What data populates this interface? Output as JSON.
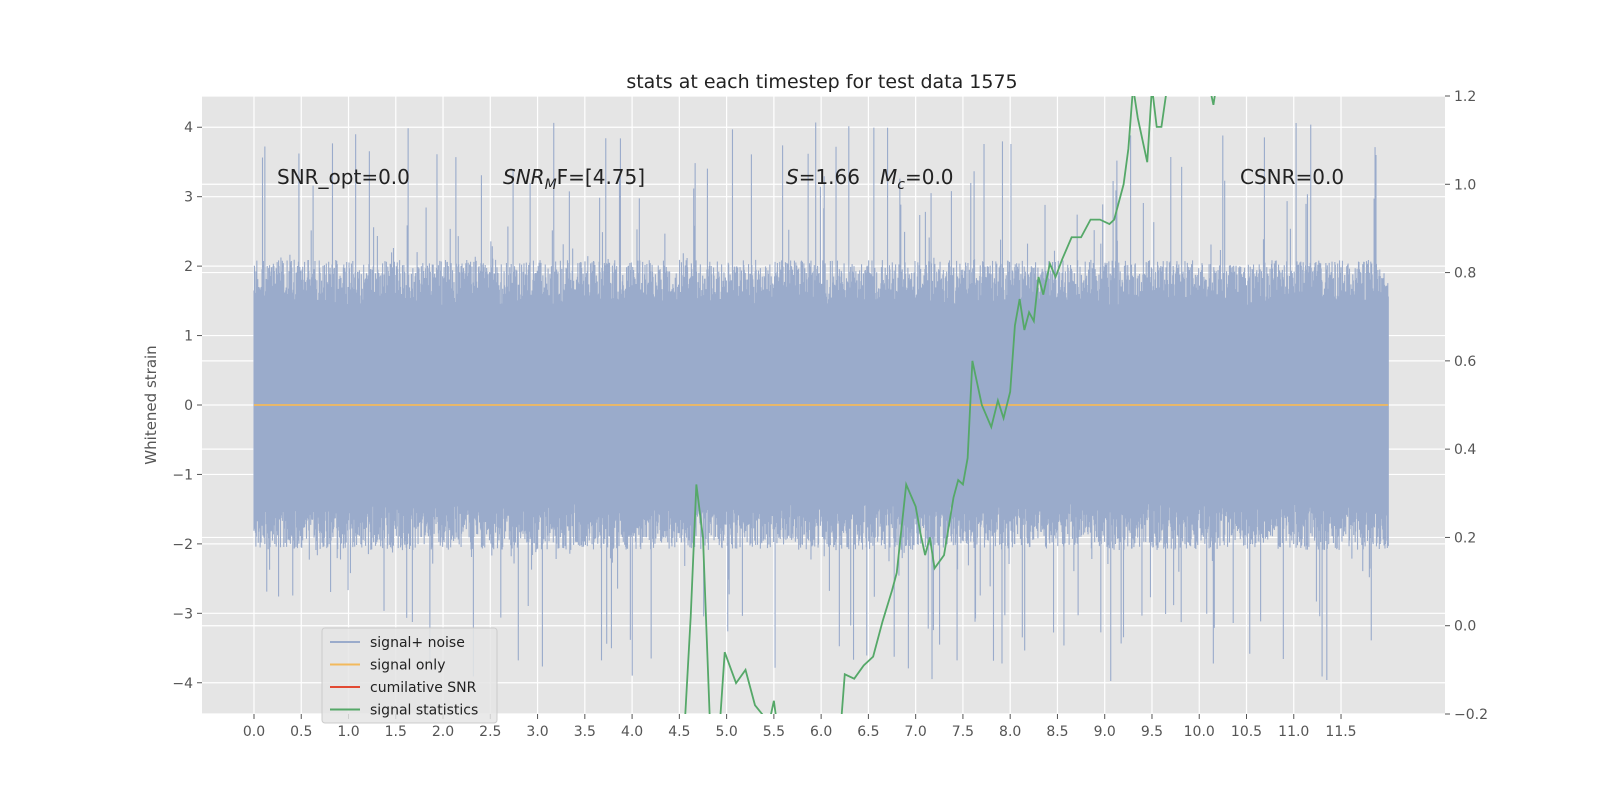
{
  "chart_data": {
    "type": "line",
    "title": "stats at each timestep for test data 1575",
    "ylabel": "Whitened strain",
    "xlim": [
      -0.55,
      12.6
    ],
    "ylim": [
      -4.45,
      4.45
    ],
    "y2lim": [
      -0.2,
      1.2
    ],
    "x_ticks": [
      0.0,
      0.5,
      1.0,
      1.5,
      2.0,
      2.5,
      3.0,
      3.5,
      4.0,
      4.5,
      5.0,
      5.5,
      6.0,
      6.5,
      7.0,
      7.5,
      8.0,
      8.5,
      9.0,
      9.5,
      10.0,
      10.5,
      11.0,
      11.5
    ],
    "x_tick_labels": [
      "0.0",
      "0.5",
      "1.0",
      "1.5",
      "2.0",
      "2.5",
      "3.0",
      "3.5",
      "4.0",
      "4.5",
      "5.0",
      "5.5",
      "6.0",
      "6.5",
      "7.0",
      "7.5",
      "8.0",
      "8.5",
      "9.0",
      "9.5",
      "10.0",
      "10.5",
      "11.0",
      "11.5"
    ],
    "y_ticks": [
      4,
      3,
      2,
      1,
      0,
      -1,
      -2,
      -3,
      -4
    ],
    "y_tick_labels": [
      "4",
      "3",
      "2",
      "1",
      "0",
      "−1",
      "−2",
      "−3",
      "−4"
    ],
    "y2_ticks": [
      1.2,
      1.0,
      0.8,
      0.6,
      0.4,
      0.2,
      0.0,
      -0.2
    ],
    "y2_tick_labels": [
      "1.2",
      "1.0",
      "0.8",
      "0.6",
      "0.4",
      "0.2",
      "0.0",
      "−0.2"
    ],
    "grid": true,
    "legend_position": "lower-left",
    "annotations": {
      "snr_opt": "SNR_opt=0.0",
      "snr_mf_sym": "SNR",
      "snr_mf_sub": "M",
      "snr_mf_rest": "F=[4.75]",
      "s_sym": "S",
      "s_rest": "=1.66",
      "mc_sym": "M",
      "mc_sub": "c",
      "mc_rest": "=0.0",
      "csnr": "CSNR=0.0"
    },
    "series": [
      {
        "name": "signal+ noise",
        "color": "#9aabcb",
        "axis": "left",
        "x_range": [
          0.0,
          12.0
        ],
        "envelope": {
          "typical_min": -1.9,
          "typical_max": 1.9,
          "spike_max": 4.07,
          "spike_min": -4.0
        }
      },
      {
        "name": "signal only",
        "color": "#f2b95c",
        "axis": "left",
        "x": [
          0.0,
          12.0
        ],
        "y": [
          0.0,
          0.0
        ]
      },
      {
        "name": "cumilative SNR",
        "color": "#e24a33",
        "axis": "right",
        "x": [],
        "y": []
      },
      {
        "name": "signal statistics",
        "color": "#55a868",
        "axis": "right",
        "x": [
          4.55,
          4.62,
          4.68,
          4.75,
          4.82,
          4.92,
          4.98,
          5.1,
          5.2,
          5.3,
          5.45,
          5.5,
          5.55,
          6.2,
          6.25,
          6.35,
          6.45,
          6.55,
          6.65,
          6.75,
          6.8,
          6.9,
          7.0,
          7.05,
          7.1,
          7.15,
          7.2,
          7.3,
          7.4,
          7.45,
          7.5,
          7.55,
          7.6,
          7.7,
          7.8,
          7.87,
          7.93,
          8.0,
          8.05,
          8.1,
          8.15,
          8.2,
          8.25,
          8.3,
          8.35,
          8.42,
          8.48,
          8.55,
          8.65,
          8.75,
          8.85,
          8.95,
          9.05,
          9.1,
          9.2,
          9.25,
          9.3,
          9.35,
          9.45,
          9.5,
          9.55,
          9.6,
          9.68,
          9.72,
          10.08,
          10.15,
          10.2
        ],
        "y": [
          -0.25,
          0.02,
          0.32,
          0.2,
          -0.2,
          -0.25,
          -0.06,
          -0.13,
          -0.1,
          -0.18,
          -0.22,
          -0.17,
          -0.25,
          -0.25,
          -0.11,
          -0.12,
          -0.09,
          -0.07,
          0.01,
          0.08,
          0.12,
          0.32,
          0.27,
          0.21,
          0.16,
          0.2,
          0.13,
          0.16,
          0.29,
          0.33,
          0.32,
          0.38,
          0.6,
          0.5,
          0.45,
          0.51,
          0.47,
          0.53,
          0.68,
          0.74,
          0.67,
          0.71,
          0.69,
          0.79,
          0.75,
          0.82,
          0.79,
          0.83,
          0.88,
          0.88,
          0.92,
          0.92,
          0.91,
          0.92,
          1.0,
          1.08,
          1.22,
          1.15,
          1.05,
          1.22,
          1.13,
          1.13,
          1.25,
          1.25,
          1.25,
          1.18,
          1.25
        ]
      }
    ]
  }
}
